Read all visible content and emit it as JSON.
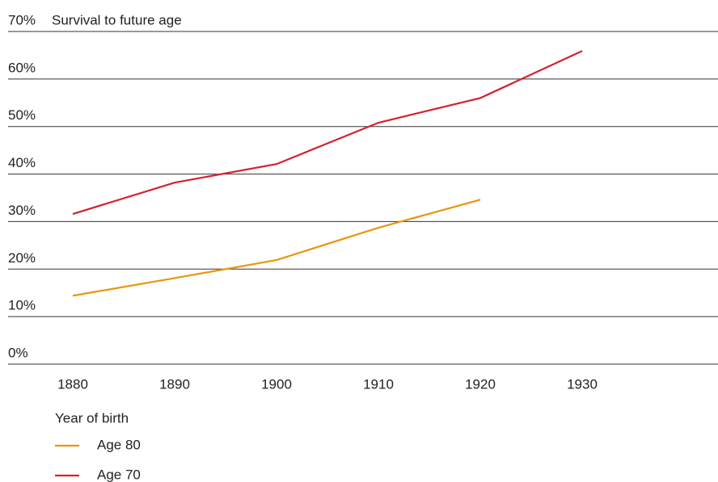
{
  "chart_data": {
    "type": "line",
    "title": "Survival to future age",
    "x_label": "Year of birth",
    "categories": [
      "1880",
      "1890",
      "1900",
      "1910",
      "1920",
      "1930"
    ],
    "series": [
      {
        "name": "Age 80",
        "color": "#e8960f",
        "values": [
          14.4,
          18.1,
          21.9,
          28.7,
          34.6,
          null
        ]
      },
      {
        "name": "Age 70",
        "color": "#d42030",
        "values": [
          31.6,
          38.2,
          42.1,
          50.8,
          56.0,
          65.9
        ]
      }
    ],
    "ylim": [
      0,
      70
    ],
    "yticks": [
      {
        "value": 0,
        "label": "0%"
      },
      {
        "value": 10,
        "label": "10%"
      },
      {
        "value": 20,
        "label": "20%"
      },
      {
        "value": 30,
        "label": "30%"
      },
      {
        "value": 40,
        "label": "40%"
      },
      {
        "value": 50,
        "label": "50%"
      },
      {
        "value": 60,
        "label": "60%"
      },
      {
        "value": 70,
        "label": "70%"
      }
    ],
    "grid": true,
    "legend": "bottom-left"
  }
}
